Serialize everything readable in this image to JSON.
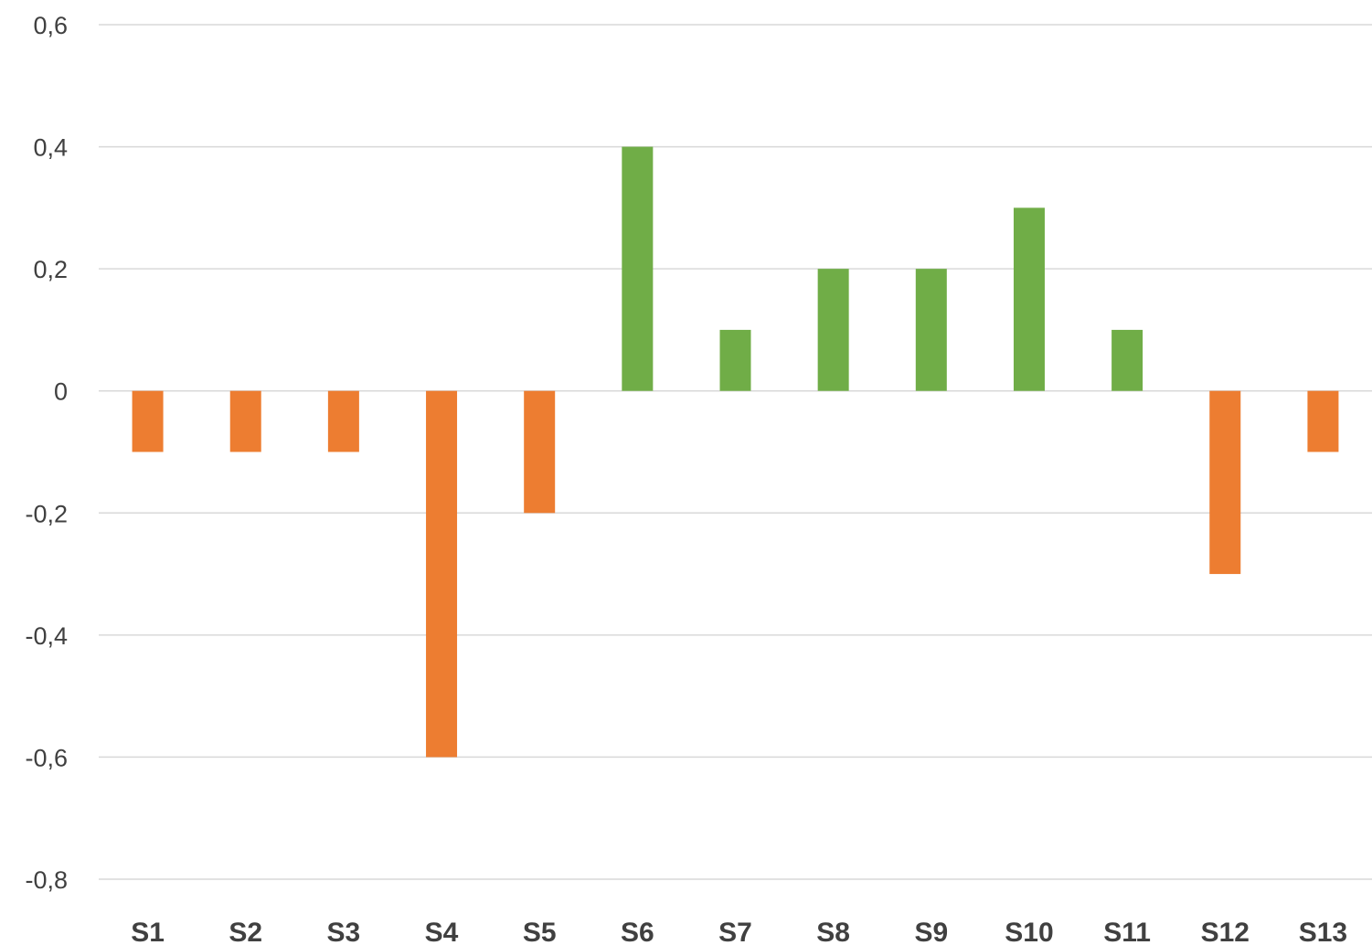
{
  "chart_data": {
    "type": "bar",
    "categories": [
      "S1",
      "S2",
      "S3",
      "S4",
      "S5",
      "S6",
      "S7",
      "S8",
      "S9",
      "S10",
      "S11",
      "S12",
      "S13"
    ],
    "values": [
      -0.1,
      -0.1,
      -0.1,
      -0.6,
      -0.2,
      0.4,
      0.1,
      0.2,
      0.2,
      0.3,
      0.1,
      -0.3,
      -0.1
    ],
    "title": "",
    "xlabel": "",
    "ylabel": "",
    "ylim": [
      -0.8,
      0.6
    ],
    "yticks": [
      0.6,
      0.4,
      0.2,
      0,
      -0.2,
      -0.4,
      -0.6,
      -0.8
    ],
    "ytick_labels": [
      "0,6",
      "0,4",
      "0,2",
      "0",
      "-0,2",
      "-0,4",
      "-0,6",
      "-0,8"
    ],
    "grid": true,
    "legend": "none",
    "colors": {
      "positive": "#70ad47",
      "negative": "#ed7d31",
      "gridline": "#d9d9d9",
      "text": "#404040"
    }
  }
}
